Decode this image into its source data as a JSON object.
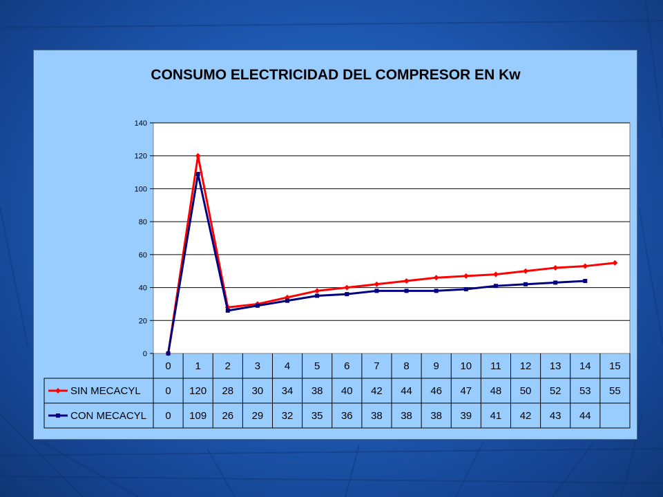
{
  "chart_data": {
    "type": "line",
    "title": "CONSUMO ELECTRICIDAD DEL COMPRESOR  EN Kw",
    "categories": [
      "0",
      "1",
      "2",
      "3",
      "4",
      "5",
      "6",
      "7",
      "8",
      "9",
      "10",
      "11",
      "12",
      "13",
      "14",
      "15"
    ],
    "ylim": [
      0,
      140
    ],
    "yticks": [
      0,
      20,
      40,
      60,
      80,
      100,
      120,
      140
    ],
    "grid": "horizontal",
    "legend_placement": "data-table",
    "series": [
      {
        "name": "SIN MECACYL",
        "color": "#ff0000",
        "marker": "diamond",
        "values": [
          0,
          120,
          28,
          30,
          34,
          38,
          40,
          42,
          44,
          46,
          47,
          48,
          50,
          52,
          53,
          55
        ],
        "labels": [
          "0",
          "120",
          "28",
          "30",
          "34",
          "38",
          "40",
          "42",
          "44",
          "46",
          "47",
          "48",
          "50",
          "52",
          "53",
          "55"
        ]
      },
      {
        "name": "CON MECACYL",
        "color": "#000080",
        "marker": "square",
        "values": [
          0,
          109,
          26,
          29,
          32,
          35,
          36,
          38,
          38,
          38,
          39,
          41,
          42,
          43,
          44,
          null
        ],
        "labels": [
          "0",
          "109",
          "26",
          "29",
          "32",
          "35",
          "36",
          "38",
          "38",
          "38",
          "39",
          "41",
          "42",
          "43",
          "44",
          ""
        ]
      }
    ]
  }
}
